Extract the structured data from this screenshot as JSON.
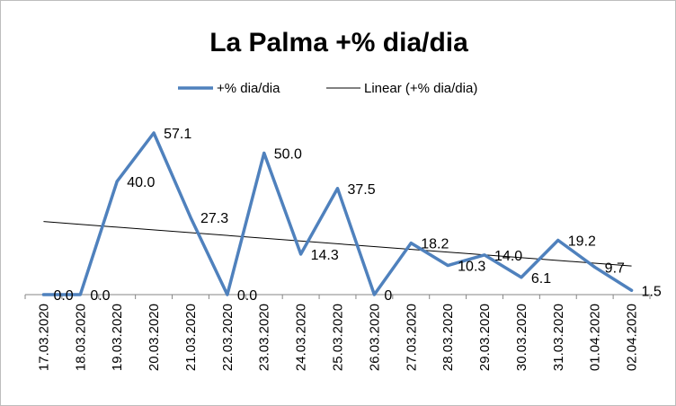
{
  "chart_data": {
    "type": "line",
    "title": "La Palma +% dia/dia",
    "categories": [
      "17.03.2020",
      "18.03.2020",
      "19.03.2020",
      "20.03.2020",
      "21.03.2020",
      "22.03.2020",
      "23.03.2020",
      "24.03.2020",
      "25.03.2020",
      "26.03.2020",
      "27.03.2020",
      "28.03.2020",
      "29.03.2020",
      "30.03.2020",
      "31.03.2020",
      "01.04.2020",
      "02.04.2020"
    ],
    "series": [
      {
        "name": "+% dia/dia",
        "color": "#4f81bd",
        "values": [
          0.0,
          0.0,
          40.0,
          57.1,
          27.3,
          0.0,
          50.0,
          14.3,
          37.5,
          0,
          18.2,
          10.3,
          14.0,
          6.1,
          19.2,
          9.7,
          1.5
        ],
        "labels": [
          "0.0",
          "0.0",
          "40.0",
          "57.1",
          "27.3",
          "0.0",
          "50.0",
          "14.3",
          "37.5",
          "0",
          "18.2",
          "10.3",
          "14.0",
          "6.1",
          "19.2",
          "9.7",
          "1.5"
        ]
      }
    ],
    "trendline": {
      "name": "Linear (+% dia/dia)",
      "color": "#000000",
      "type": "linear"
    },
    "ylim": [
      0,
      60
    ],
    "grid": false,
    "legend": "top"
  }
}
